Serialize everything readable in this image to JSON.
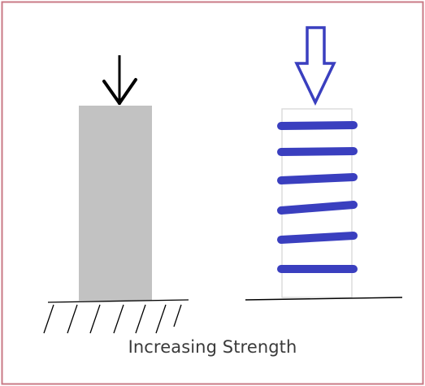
{
  "caption": "Increasing Strength",
  "colors": {
    "border": "#c97a86",
    "column_fill": "#c2c2c2",
    "spring_stroke": "#3a3fbf",
    "black": "#000000",
    "sleeve_outline": "#d7d7d7"
  },
  "icons": {
    "left_load": "arrow-down-icon",
    "right_load": "hollow-arrow-down-icon"
  }
}
